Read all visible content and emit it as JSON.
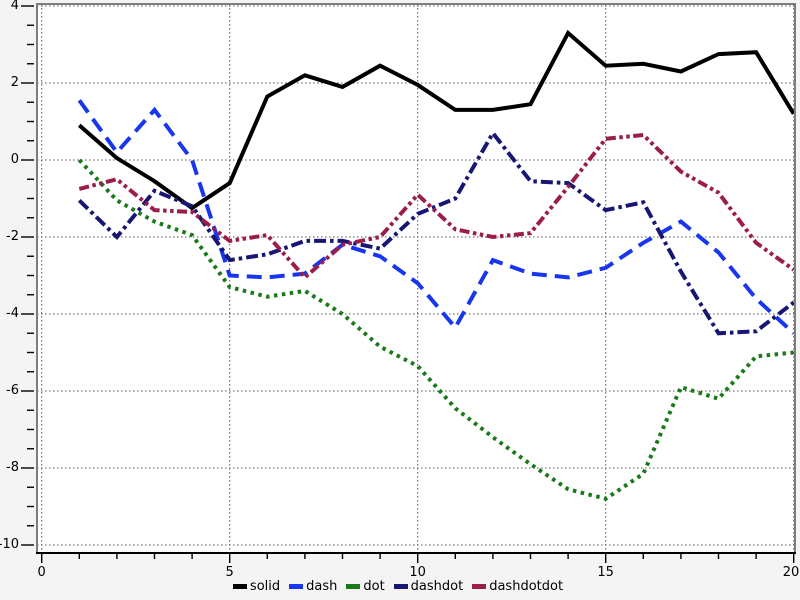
{
  "chart_data": {
    "type": "line",
    "x": [
      1,
      2,
      3,
      4,
      5,
      6,
      7,
      8,
      9,
      10,
      11,
      12,
      13,
      14,
      15,
      16,
      17,
      18,
      19,
      20
    ],
    "series": [
      {
        "name": "solid",
        "style": "solid",
        "color": "#000000",
        "values": [
          0.9,
          0.05,
          -0.55,
          -1.25,
          -0.6,
          1.65,
          2.2,
          1.9,
          2.45,
          1.95,
          1.3,
          1.3,
          1.45,
          3.3,
          2.45,
          2.5,
          2.3,
          2.75,
          2.8,
          1.2
        ]
      },
      {
        "name": "dash",
        "style": "dash",
        "color": "#1836ee",
        "values": [
          1.55,
          0.2,
          1.3,
          0.0,
          -3.0,
          -3.05,
          -2.95,
          -2.2,
          -2.5,
          -3.2,
          -4.35,
          -2.6,
          -2.95,
          -3.05,
          -2.8,
          -2.15,
          -1.6,
          -2.4,
          -3.6,
          -4.5
        ]
      },
      {
        "name": "dot",
        "style": "dot",
        "color": "#1a7a1a",
        "values": [
          0.0,
          -1.05,
          -1.6,
          -1.95,
          -3.3,
          -3.55,
          -3.4,
          -4.0,
          -4.85,
          -5.35,
          -6.45,
          -7.2,
          -7.9,
          -8.55,
          -8.8,
          -8.15,
          -5.9,
          -6.2,
          -5.1,
          -5.0
        ]
      },
      {
        "name": "dashdot",
        "style": "dashdot",
        "color": "#171773",
        "values": [
          -1.05,
          -2.0,
          -0.8,
          -1.2,
          -2.6,
          -2.45,
          -2.1,
          -2.1,
          -2.3,
          -1.4,
          -1.0,
          0.7,
          -0.55,
          -0.6,
          -1.3,
          -1.1,
          -2.9,
          -4.5,
          -4.45,
          -3.7
        ]
      },
      {
        "name": "dashdotdot",
        "style": "dashdotdot",
        "color": "#9b1d4b",
        "values": [
          -0.75,
          -0.5,
          -1.3,
          -1.35,
          -2.1,
          -1.95,
          -3.05,
          -2.2,
          -2.0,
          -0.9,
          -1.8,
          -2.0,
          -1.9,
          -0.7,
          0.55,
          0.65,
          -0.3,
          -0.85,
          -2.15,
          -2.85
        ]
      }
    ],
    "title": "",
    "xlabel": "",
    "ylabel": "",
    "xlim": [
      0,
      20
    ],
    "ylim": [
      -10,
      4
    ],
    "x_tick_labels": [
      "0",
      "5",
      "10",
      "15",
      "20"
    ],
    "x_tick_values": [
      0,
      5,
      10,
      15,
      20
    ],
    "y_tick_labels": [
      "4",
      "2",
      "0",
      "-2",
      "-4",
      "-6",
      "-8",
      "-10"
    ],
    "y_tick_values": [
      4,
      2,
      0,
      -2,
      -4,
      -6,
      -8,
      -10
    ],
    "minor_x_tick_step": 1,
    "minor_y_tick_step": 0.5,
    "grid": true,
    "legend_position": "bottom",
    "legend_labels": [
      "solid",
      "dash",
      "dot",
      "dashdot",
      "dashdotdot"
    ],
    "colors": {
      "background": "#f4f4f4",
      "plot_background": "#ffffff",
      "grid": "#555555",
      "frame": "#7d7d7d",
      "axis": "#000000",
      "tick_label": "#000000"
    }
  }
}
